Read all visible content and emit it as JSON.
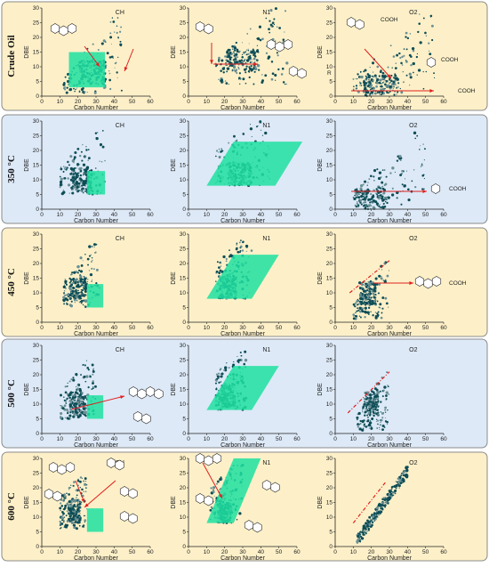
{
  "chart_data": {
    "type": "scatter",
    "panel_titles": [
      "CH",
      "N1",
      "O2"
    ],
    "row_labels": [
      "Crude Oil",
      "350 °C",
      "450 °C",
      "500 °C",
      "600 °C"
    ],
    "xlabel": "Carbon Number",
    "ylabel": "DBE",
    "xlim": [
      0,
      60
    ],
    "ylim": [
      0,
      30
    ],
    "xticks": [
      0,
      10,
      20,
      30,
      40,
      50,
      60
    ],
    "yticks": [
      0,
      5,
      10,
      15,
      20,
      25,
      30
    ],
    "row_backgrounds": [
      "#fdf0c8",
      "#dde9f7",
      "#fdf0c8",
      "#dde9f7",
      "#fdf0c8"
    ],
    "point_color": "#0d4d56",
    "region_color": "#1fe0a0",
    "annotation_color": "#e02020",
    "molecule_labels": {
      "o2_crude_top": "COOH",
      "o2_crude_mid": "COOH",
      "o2_crude_low": "COOH",
      "o2_350": "COOH",
      "o2_450": "COOH",
      "substituent": "R"
    },
    "panels": [
      {
        "row": 0,
        "col": 0,
        "cloud": {
          "xmin": 12,
          "xmax": 45,
          "ymin": 1,
          "ymax": 28,
          "peak_x": 28,
          "peak_y": 8
        },
        "region": [
          [
            15,
            3
          ],
          [
            35,
            3
          ],
          [
            35,
            15
          ],
          [
            15,
            15
          ]
        ]
      },
      {
        "row": 0,
        "col": 1,
        "cloud": {
          "xmin": 15,
          "xmax": 55,
          "ymin": 4,
          "ymax": 27,
          "peak_x": 30,
          "peak_y": 12
        },
        "region": null
      },
      {
        "row": 0,
        "col": 2,
        "cloud": {
          "xmin": 10,
          "xmax": 55,
          "ymin": 1,
          "ymax": 28,
          "peak_x": 25,
          "peak_y": 3
        },
        "region": null
      },
      {
        "row": 1,
        "col": 0,
        "cloud": {
          "xmin": 10,
          "xmax": 35,
          "ymin": 5,
          "ymax": 22,
          "peak_x": 22,
          "peak_y": 10
        },
        "region": [
          [
            25,
            5
          ],
          [
            35,
            5
          ],
          [
            35,
            13
          ],
          [
            25,
            13
          ]
        ]
      },
      {
        "row": 1,
        "col": 1,
        "cloud": {
          "xmin": 15,
          "xmax": 45,
          "ymin": 8,
          "ymax": 22,
          "peak_x": 28,
          "peak_y": 12
        },
        "region": [
          [
            10,
            8
          ],
          [
            48,
            8
          ],
          [
            63,
            23
          ],
          [
            25,
            23
          ]
        ]
      },
      {
        "row": 1,
        "col": 2,
        "cloud": {
          "xmin": 10,
          "xmax": 50,
          "ymin": 1,
          "ymax": 25,
          "peak_x": 20,
          "peak_y": 3
        },
        "region": null
      },
      {
        "row": 2,
        "col": 0,
        "cloud": {
          "xmin": 12,
          "xmax": 32,
          "ymin": 5,
          "ymax": 22,
          "peak_x": 20,
          "peak_y": 11
        },
        "region": [
          [
            25,
            5
          ],
          [
            34,
            5
          ],
          [
            34,
            13
          ],
          [
            25,
            13
          ]
        ]
      },
      {
        "row": 2,
        "col": 1,
        "cloud": {
          "xmin": 15,
          "xmax": 35,
          "ymin": 8,
          "ymax": 20,
          "peak_x": 22,
          "peak_y": 12
        },
        "region": [
          [
            10,
            8
          ],
          [
            35,
            8
          ],
          [
            50,
            23
          ],
          [
            25,
            23
          ]
        ]
      },
      {
        "row": 2,
        "col": 2,
        "cloud": {
          "xmin": 10,
          "xmax": 30,
          "ymin": 1,
          "ymax": 20,
          "peak_x": 18,
          "peak_y": 10
        },
        "region": null,
        "dash": [
          [
            8,
            10
          ],
          [
            30,
            21
          ]
        ]
      },
      {
        "row": 3,
        "col": 0,
        "cloud": {
          "xmin": 10,
          "xmax": 30,
          "ymin": 5,
          "ymax": 20,
          "peak_x": 20,
          "peak_y": 10
        },
        "region": [
          [
            25,
            5
          ],
          [
            34,
            5
          ],
          [
            34,
            13
          ],
          [
            25,
            13
          ]
        ]
      },
      {
        "row": 3,
        "col": 1,
        "cloud": {
          "xmin": 15,
          "xmax": 32,
          "ymin": 8,
          "ymax": 20,
          "peak_x": 22,
          "peak_y": 13
        },
        "region": [
          [
            10,
            8
          ],
          [
            35,
            8
          ],
          [
            50,
            23
          ],
          [
            25,
            23
          ]
        ]
      },
      {
        "row": 3,
        "col": 2,
        "cloud": {
          "xmin": 12,
          "xmax": 30,
          "ymin": 1,
          "ymax": 20,
          "peak_x": 20,
          "peak_y": 10
        },
        "region": null,
        "dash": [
          [
            7,
            7
          ],
          [
            30,
            21
          ]
        ]
      },
      {
        "row": 4,
        "col": 0,
        "cloud": {
          "xmin": 10,
          "xmax": 25,
          "ymin": 6,
          "ymax": 18,
          "peak_x": 18,
          "peak_y": 12
        },
        "region": [
          [
            25,
            5
          ],
          [
            34,
            5
          ],
          [
            34,
            13
          ],
          [
            25,
            13
          ]
        ]
      },
      {
        "row": 4,
        "col": 1,
        "cloud": {
          "xmin": 12,
          "xmax": 30,
          "ymin": 8,
          "ymax": 20,
          "peak_x": 20,
          "peak_y": 12
        },
        "region": [
          [
            10,
            8
          ],
          [
            25,
            8
          ],
          [
            40,
            30
          ],
          [
            25,
            30
          ]
        ]
      },
      {
        "row": 4,
        "col": 2,
        "cloud": {
          "xmin": 12,
          "xmax": 40,
          "ymin": 2,
          "ymax": 26,
          "peak_x": 25,
          "peak_y": 14
        },
        "region": null,
        "dash": [
          [
            10,
            8
          ],
          [
            28,
            22
          ]
        ],
        "diag": true
      }
    ]
  }
}
